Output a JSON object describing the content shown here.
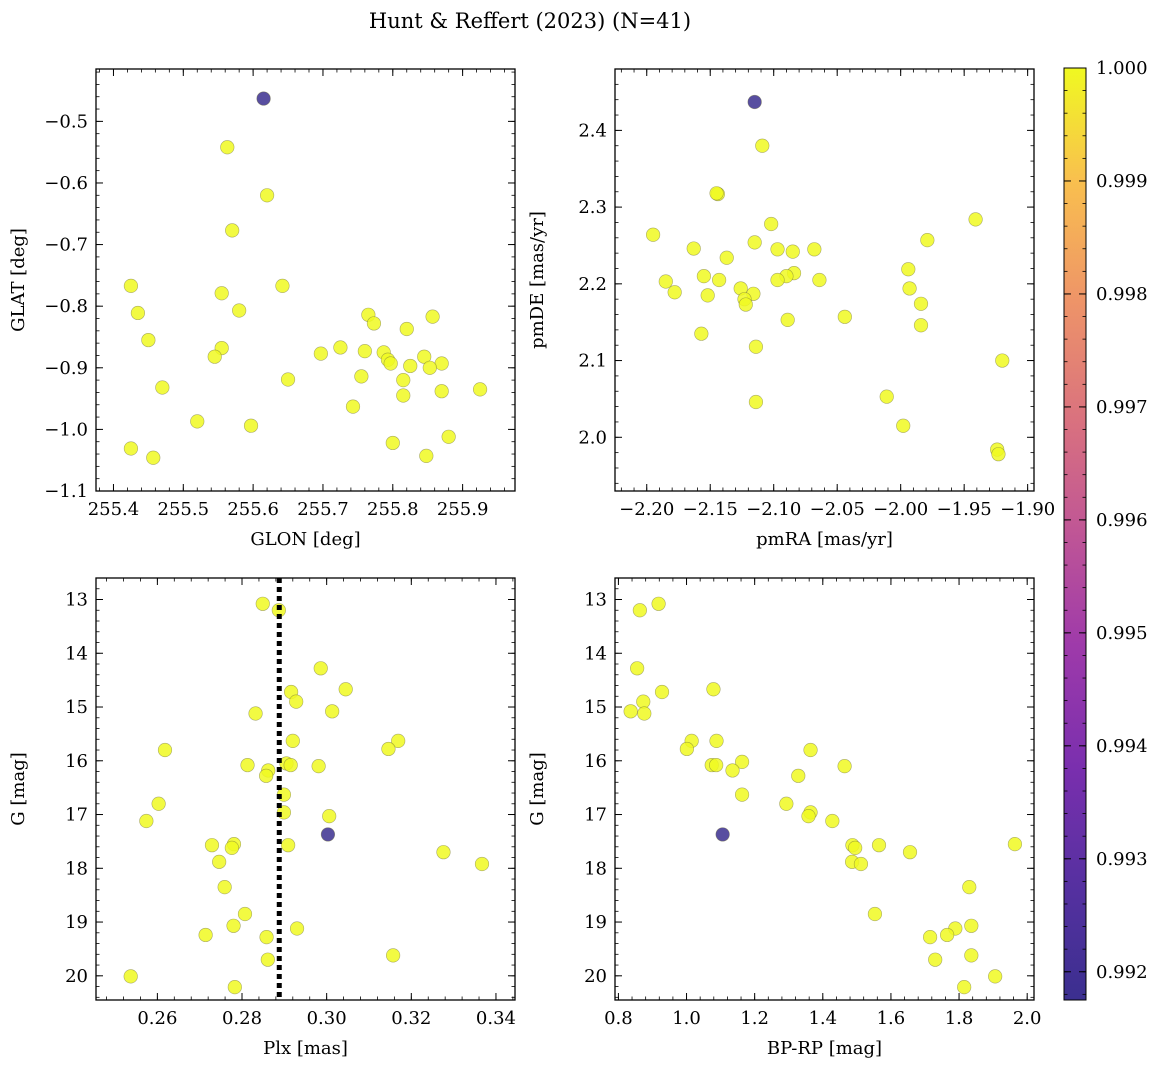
{
  "figure": {
    "suptitle": "Hunt & Reffert (2023) (N=41)"
  },
  "colorbar": {
    "colormap": "plasma",
    "min": 0.99175,
    "max": 1.0,
    "ticks": [
      0.992,
      0.993,
      0.994,
      0.995,
      0.996,
      0.997,
      0.998,
      0.999,
      1.0
    ],
    "tick_labels": [
      "0.992",
      "0.993",
      "0.994",
      "0.995",
      "0.996",
      "0.997",
      "0.998",
      "0.999",
      "1.000"
    ],
    "colors": {
      "high": "#F0F921",
      "low": "#3B2F8F"
    }
  },
  "chart_data": [
    {
      "type": "scatter",
      "title": "",
      "xlabel": "GLON [deg]",
      "ylabel": "GLAT [deg]",
      "xlim": [
        255.375,
        255.975
      ],
      "ylim": [
        -1.1,
        -0.415
      ],
      "y_inverted": false,
      "xticks": [
        255.4,
        255.5,
        255.6,
        255.7,
        255.8,
        255.9
      ],
      "xtick_labels": [
        "255.4",
        "255.5",
        "255.6",
        "255.7",
        "255.8",
        "255.9"
      ],
      "yticks": [
        -1.1,
        -1.0,
        -0.9,
        -0.8,
        -0.7,
        -0.6,
        -0.5
      ],
      "ytick_labels": [
        "−1.1",
        "−1.0",
        "−0.9",
        "−0.8",
        "−0.7",
        "−0.6",
        "−0.5"
      ],
      "vline": null,
      "points": [
        {
          "x": 255.615,
          "y": -0.463,
          "c": 0.99175
        },
        {
          "x": 255.563,
          "y": -0.542,
          "c": 1.0
        },
        {
          "x": 255.62,
          "y": -0.62,
          "c": 1.0
        },
        {
          "x": 255.57,
          "y": -0.677,
          "c": 1.0
        },
        {
          "x": 255.425,
          "y": -0.767,
          "c": 1.0
        },
        {
          "x": 255.642,
          "y": -0.767,
          "c": 1.0
        },
        {
          "x": 255.555,
          "y": -0.779,
          "c": 1.0
        },
        {
          "x": 255.58,
          "y": -0.807,
          "c": 1.0
        },
        {
          "x": 255.435,
          "y": -0.811,
          "c": 1.0
        },
        {
          "x": 255.765,
          "y": -0.814,
          "c": 1.0
        },
        {
          "x": 255.857,
          "y": -0.817,
          "c": 1.0
        },
        {
          "x": 255.773,
          "y": -0.828,
          "c": 1.0
        },
        {
          "x": 255.82,
          "y": -0.837,
          "c": 1.0
        },
        {
          "x": 255.45,
          "y": -0.855,
          "c": 1.0
        },
        {
          "x": 255.555,
          "y": -0.868,
          "c": 1.0
        },
        {
          "x": 255.725,
          "y": -0.867,
          "c": 1.0
        },
        {
          "x": 255.76,
          "y": -0.873,
          "c": 1.0
        },
        {
          "x": 255.787,
          "y": -0.875,
          "c": 1.0
        },
        {
          "x": 255.697,
          "y": -0.877,
          "c": 1.0
        },
        {
          "x": 255.545,
          "y": -0.882,
          "c": 1.0
        },
        {
          "x": 255.845,
          "y": -0.882,
          "c": 1.0
        },
        {
          "x": 255.793,
          "y": -0.887,
          "c": 1.0
        },
        {
          "x": 255.797,
          "y": -0.893,
          "c": 1.0
        },
        {
          "x": 255.87,
          "y": -0.893,
          "c": 1.0
        },
        {
          "x": 255.825,
          "y": -0.897,
          "c": 1.0
        },
        {
          "x": 255.853,
          "y": -0.9,
          "c": 1.0
        },
        {
          "x": 255.755,
          "y": -0.914,
          "c": 1.0
        },
        {
          "x": 255.65,
          "y": -0.919,
          "c": 1.0
        },
        {
          "x": 255.815,
          "y": -0.92,
          "c": 1.0
        },
        {
          "x": 255.47,
          "y": -0.932,
          "c": 1.0
        },
        {
          "x": 255.925,
          "y": -0.935,
          "c": 1.0
        },
        {
          "x": 255.87,
          "y": -0.938,
          "c": 1.0
        },
        {
          "x": 255.815,
          "y": -0.945,
          "c": 1.0
        },
        {
          "x": 255.743,
          "y": -0.963,
          "c": 1.0
        },
        {
          "x": 255.52,
          "y": -0.987,
          "c": 1.0
        },
        {
          "x": 255.88,
          "y": -1.012,
          "c": 1.0
        },
        {
          "x": 255.8,
          "y": -1.022,
          "c": 1.0
        },
        {
          "x": 255.425,
          "y": -1.031,
          "c": 1.0
        },
        {
          "x": 255.848,
          "y": -1.043,
          "c": 1.0
        },
        {
          "x": 255.457,
          "y": -1.046,
          "c": 1.0
        },
        {
          "x": 255.597,
          "y": -0.994,
          "c": 1.0
        }
      ]
    },
    {
      "type": "scatter",
      "title": "",
      "xlabel": "pmRA [mas/yr]",
      "ylabel": "pmDE [mas/yr]",
      "xlim": [
        -2.225,
        -1.895
      ],
      "ylim": [
        1.93,
        2.48
      ],
      "y_inverted": false,
      "xticks": [
        -2.2,
        -2.15,
        -2.1,
        -2.05,
        -2.0,
        -1.95,
        -1.9
      ],
      "xtick_labels": [
        "−2.20",
        "−2.15",
        "−2.10",
        "−2.05",
        "−2.00",
        "−1.95",
        "−1.90"
      ],
      "yticks": [
        2.0,
        2.1,
        2.2,
        2.3,
        2.4
      ],
      "ytick_labels": [
        "2.0",
        "2.1",
        "2.2",
        "2.3",
        "2.4"
      ],
      "vline": null,
      "points": [
        {
          "x": -2.115,
          "y": 2.437,
          "c": 0.99175
        },
        {
          "x": -2.109,
          "y": 2.38,
          "c": 1.0
        },
        {
          "x": -2.144,
          "y": 2.317,
          "c": 1.0
        },
        {
          "x": -1.941,
          "y": 2.284,
          "c": 1.0
        },
        {
          "x": -2.102,
          "y": 2.278,
          "c": 1.0
        },
        {
          "x": -2.195,
          "y": 2.264,
          "c": 1.0
        },
        {
          "x": -1.979,
          "y": 2.257,
          "c": 1.0
        },
        {
          "x": -2.115,
          "y": 2.254,
          "c": 1.0
        },
        {
          "x": -2.163,
          "y": 2.246,
          "c": 1.0
        },
        {
          "x": -2.097,
          "y": 2.245,
          "c": 1.0
        },
        {
          "x": -2.068,
          "y": 2.245,
          "c": 1.0
        },
        {
          "x": -2.085,
          "y": 2.242,
          "c": 1.0
        },
        {
          "x": -2.137,
          "y": 2.234,
          "c": 1.0
        },
        {
          "x": -1.994,
          "y": 2.219,
          "c": 1.0
        },
        {
          "x": -2.084,
          "y": 2.214,
          "c": 1.0
        },
        {
          "x": -2.155,
          "y": 2.21,
          "c": 1.0
        },
        {
          "x": -2.09,
          "y": 2.21,
          "c": 1.0
        },
        {
          "x": -2.143,
          "y": 2.205,
          "c": 1.0
        },
        {
          "x": -2.097,
          "y": 2.205,
          "c": 1.0
        },
        {
          "x": -2.064,
          "y": 2.205,
          "c": 1.0
        },
        {
          "x": -2.185,
          "y": 2.203,
          "c": 1.0
        },
        {
          "x": -2.126,
          "y": 2.194,
          "c": 1.0
        },
        {
          "x": -1.993,
          "y": 2.194,
          "c": 1.0
        },
        {
          "x": -2.178,
          "y": 2.189,
          "c": 1.0
        },
        {
          "x": -2.116,
          "y": 2.187,
          "c": 1.0
        },
        {
          "x": -2.152,
          "y": 2.185,
          "c": 1.0
        },
        {
          "x": -2.123,
          "y": 2.18,
          "c": 1.0
        },
        {
          "x": -1.984,
          "y": 2.174,
          "c": 1.0
        },
        {
          "x": -2.122,
          "y": 2.173,
          "c": 1.0
        },
        {
          "x": -2.044,
          "y": 2.157,
          "c": 1.0
        },
        {
          "x": -2.089,
          "y": 2.153,
          "c": 1.0
        },
        {
          "x": -1.984,
          "y": 2.146,
          "c": 1.0
        },
        {
          "x": -2.157,
          "y": 2.135,
          "c": 1.0
        },
        {
          "x": -2.114,
          "y": 2.118,
          "c": 1.0
        },
        {
          "x": -1.92,
          "y": 2.1,
          "c": 1.0
        },
        {
          "x": -2.011,
          "y": 2.053,
          "c": 1.0
        },
        {
          "x": -2.114,
          "y": 2.046,
          "c": 1.0
        },
        {
          "x": -1.998,
          "y": 2.015,
          "c": 1.0
        },
        {
          "x": -1.924,
          "y": 1.984,
          "c": 1.0
        },
        {
          "x": -1.923,
          "y": 1.978,
          "c": 1.0
        },
        {
          "x": -2.145,
          "y": 2.318,
          "c": 1.0
        }
      ]
    },
    {
      "type": "scatter",
      "title": "",
      "xlabel": "Plx [mas]",
      "ylabel": "G [mag]",
      "xlim": [
        0.2455,
        0.3445
      ],
      "ylim": [
        12.6,
        20.45
      ],
      "y_inverted": true,
      "xticks": [
        0.26,
        0.28,
        0.3,
        0.32,
        0.34
      ],
      "xtick_labels": [
        "0.26",
        "0.28",
        "0.30",
        "0.32",
        "0.34"
      ],
      "yticks": [
        13,
        14,
        15,
        16,
        17,
        18,
        19,
        20
      ],
      "ytick_labels": [
        "13",
        "14",
        "15",
        "16",
        "17",
        "18",
        "19",
        "20"
      ],
      "vline": {
        "x": 0.2888,
        "style": "dotted",
        "color": "#000000"
      },
      "points": [
        {
          "x": 0.3003,
          "y": 17.37,
          "c": 0.99175
        },
        {
          "x": 0.2849,
          "y": 13.08,
          "c": 1.0
        },
        {
          "x": 0.2887,
          "y": 13.2,
          "c": 1.0
        },
        {
          "x": 0.2986,
          "y": 14.28,
          "c": 1.0
        },
        {
          "x": 0.3045,
          "y": 14.67,
          "c": 1.0
        },
        {
          "x": 0.2916,
          "y": 14.72,
          "c": 1.0
        },
        {
          "x": 0.2928,
          "y": 14.9,
          "c": 1.0
        },
        {
          "x": 0.3013,
          "y": 15.08,
          "c": 1.0
        },
        {
          "x": 0.2832,
          "y": 15.12,
          "c": 1.0
        },
        {
          "x": 0.3169,
          "y": 15.63,
          "c": 1.0
        },
        {
          "x": 0.292,
          "y": 15.63,
          "c": 1.0
        },
        {
          "x": 0.2618,
          "y": 15.8,
          "c": 1.0
        },
        {
          "x": 0.3146,
          "y": 15.78,
          "c": 1.0
        },
        {
          "x": 0.2905,
          "y": 16.05,
          "c": 1.0
        },
        {
          "x": 0.2813,
          "y": 16.08,
          "c": 1.0
        },
        {
          "x": 0.2915,
          "y": 16.08,
          "c": 1.0
        },
        {
          "x": 0.2981,
          "y": 16.1,
          "c": 1.0
        },
        {
          "x": 0.2862,
          "y": 16.18,
          "c": 1.0
        },
        {
          "x": 0.2857,
          "y": 16.28,
          "c": 1.0
        },
        {
          "x": 0.2899,
          "y": 16.63,
          "c": 1.0
        },
        {
          "x": 0.2603,
          "y": 16.8,
          "c": 1.0
        },
        {
          "x": 0.2899,
          "y": 16.96,
          "c": 1.0
        },
        {
          "x": 0.3006,
          "y": 17.03,
          "c": 1.0
        },
        {
          "x": 0.2574,
          "y": 17.12,
          "c": 1.0
        },
        {
          "x": 0.2781,
          "y": 17.55,
          "c": 1.0
        },
        {
          "x": 0.2909,
          "y": 17.57,
          "c": 1.0
        },
        {
          "x": 0.2729,
          "y": 17.57,
          "c": 1.0
        },
        {
          "x": 0.2776,
          "y": 17.62,
          "c": 1.0
        },
        {
          "x": 0.3276,
          "y": 17.7,
          "c": 1.0
        },
        {
          "x": 0.2746,
          "y": 17.88,
          "c": 1.0
        },
        {
          "x": 0.3367,
          "y": 17.92,
          "c": 1.0
        },
        {
          "x": 0.2759,
          "y": 18.35,
          "c": 1.0
        },
        {
          "x": 0.2807,
          "y": 18.85,
          "c": 1.0
        },
        {
          "x": 0.278,
          "y": 19.07,
          "c": 1.0
        },
        {
          "x": 0.293,
          "y": 19.12,
          "c": 1.0
        },
        {
          "x": 0.2714,
          "y": 19.24,
          "c": 1.0
        },
        {
          "x": 0.2858,
          "y": 19.28,
          "c": 1.0
        },
        {
          "x": 0.3157,
          "y": 19.62,
          "c": 1.0
        },
        {
          "x": 0.2861,
          "y": 19.7,
          "c": 1.0
        },
        {
          "x": 0.2537,
          "y": 20.01,
          "c": 1.0
        },
        {
          "x": 0.2783,
          "y": 20.21,
          "c": 1.0
        }
      ]
    },
    {
      "type": "scatter",
      "title": "",
      "xlabel": "BP-RP [mag]",
      "ylabel": "G [mag]",
      "xlim": [
        0.79,
        2.02
      ],
      "ylim": [
        12.6,
        20.45
      ],
      "y_inverted": true,
      "xticks": [
        0.8,
        1.0,
        1.2,
        1.4,
        1.6,
        1.8,
        2.0
      ],
      "xtick_labels": [
        "0.8",
        "1.0",
        "1.2",
        "1.4",
        "1.6",
        "1.8",
        "2.0"
      ],
      "yticks": [
        13,
        14,
        15,
        16,
        17,
        18,
        19,
        20
      ],
      "ytick_labels": [
        "13",
        "14",
        "15",
        "16",
        "17",
        "18",
        "19",
        "20"
      ],
      "vline": null,
      "points": [
        {
          "x": 1.106,
          "y": 17.37,
          "c": 0.99175
        },
        {
          "x": 0.863,
          "y": 13.2,
          "c": 1.0
        },
        {
          "x": 0.918,
          "y": 13.08,
          "c": 1.0
        },
        {
          "x": 0.855,
          "y": 14.28,
          "c": 1.0
        },
        {
          "x": 0.928,
          "y": 14.72,
          "c": 1.0
        },
        {
          "x": 1.079,
          "y": 14.67,
          "c": 1.0
        },
        {
          "x": 0.873,
          "y": 14.9,
          "c": 1.0
        },
        {
          "x": 0.836,
          "y": 15.08,
          "c": 1.0
        },
        {
          "x": 0.876,
          "y": 15.12,
          "c": 1.0
        },
        {
          "x": 1.015,
          "y": 15.63,
          "c": 1.0
        },
        {
          "x": 1.088,
          "y": 15.63,
          "c": 1.0
        },
        {
          "x": 1.001,
          "y": 15.78,
          "c": 1.0
        },
        {
          "x": 1.364,
          "y": 15.8,
          "c": 1.0
        },
        {
          "x": 1.163,
          "y": 16.02,
          "c": 1.0
        },
        {
          "x": 1.074,
          "y": 16.08,
          "c": 1.0
        },
        {
          "x": 1.087,
          "y": 16.08,
          "c": 1.0
        },
        {
          "x": 1.464,
          "y": 16.1,
          "c": 1.0
        },
        {
          "x": 1.135,
          "y": 16.18,
          "c": 1.0
        },
        {
          "x": 1.328,
          "y": 16.28,
          "c": 1.0
        },
        {
          "x": 1.163,
          "y": 16.63,
          "c": 1.0
        },
        {
          "x": 1.293,
          "y": 16.8,
          "c": 1.0
        },
        {
          "x": 1.364,
          "y": 16.96,
          "c": 1.0
        },
        {
          "x": 1.358,
          "y": 17.03,
          "c": 1.0
        },
        {
          "x": 1.428,
          "y": 17.12,
          "c": 1.0
        },
        {
          "x": 1.565,
          "y": 17.57,
          "c": 1.0
        },
        {
          "x": 1.487,
          "y": 17.57,
          "c": 1.0
        },
        {
          "x": 1.495,
          "y": 17.62,
          "c": 1.0
        },
        {
          "x": 1.964,
          "y": 17.55,
          "c": 1.0
        },
        {
          "x": 1.656,
          "y": 17.7,
          "c": 1.0
        },
        {
          "x": 1.486,
          "y": 17.88,
          "c": 1.0
        },
        {
          "x": 1.512,
          "y": 17.92,
          "c": 1.0
        },
        {
          "x": 1.83,
          "y": 18.35,
          "c": 1.0
        },
        {
          "x": 1.553,
          "y": 18.85,
          "c": 1.0
        },
        {
          "x": 1.836,
          "y": 19.07,
          "c": 1.0
        },
        {
          "x": 1.789,
          "y": 19.12,
          "c": 1.0
        },
        {
          "x": 1.765,
          "y": 19.24,
          "c": 1.0
        },
        {
          "x": 1.715,
          "y": 19.28,
          "c": 1.0
        },
        {
          "x": 1.836,
          "y": 19.62,
          "c": 1.0
        },
        {
          "x": 1.73,
          "y": 19.7,
          "c": 1.0
        },
        {
          "x": 1.906,
          "y": 20.01,
          "c": 1.0
        },
        {
          "x": 1.815,
          "y": 20.21,
          "c": 1.0
        }
      ]
    }
  ]
}
